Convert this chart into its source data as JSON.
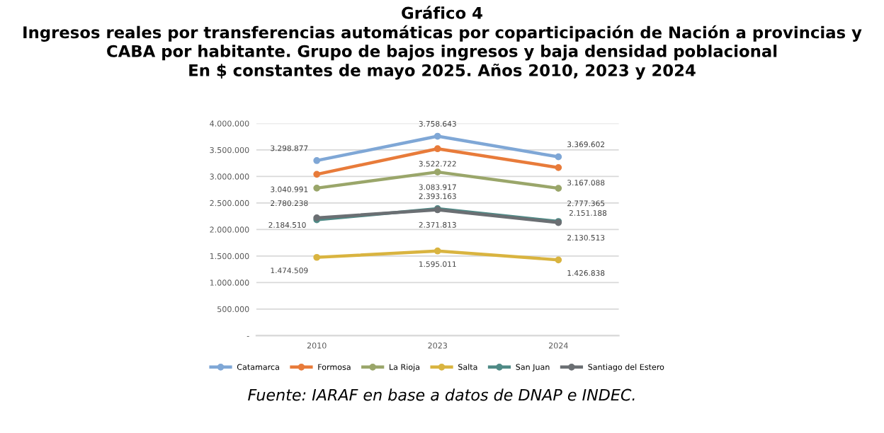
{
  "chart_data": {
    "type": "line",
    "title": "Gráfico 4\nIngresos reales por transferencias automáticas por coparticipación de Nación a provincias y\nCABA por habitante. Grupo de bajos ingresos y baja densidad poblacional\nEn $ constantes de mayo 2025. Años 2010, 2023 y 2024",
    "categories": [
      "2010",
      "2023",
      "2024"
    ],
    "series": [
      {
        "name": "Catamarca",
        "color": "#7fa7d6",
        "values": [
          3298877,
          3758643,
          3369602
        ],
        "value_labels": [
          "3.298.877",
          "3.758.643",
          "3.369.602"
        ]
      },
      {
        "name": "Formosa",
        "color": "#e87b3a",
        "values": [
          3040991,
          3522722,
          3167088
        ],
        "value_labels": [
          "3.040.991",
          "3.522.722",
          "3.167.088"
        ]
      },
      {
        "name": "La Rioja",
        "color": "#9aa66a",
        "values": [
          2780238,
          3083917,
          2777365
        ],
        "value_labels": [
          "2.780.238",
          "3.083.917",
          "2.777.365"
        ]
      },
      {
        "name": "Salta",
        "color": "#d9b440",
        "values": [
          1474509,
          1595011,
          1426838
        ],
        "value_labels": [
          "1.474.509",
          "1.595.011",
          "1.426.838"
        ]
      },
      {
        "name": "San Juan",
        "color": "#4f8a86",
        "values": [
          2184510,
          2393163,
          2151188
        ],
        "value_labels": [
          "2.184.510",
          "2.393.163",
          "2.151.188"
        ]
      },
      {
        "name": "Santiago del Estero",
        "color": "#6b6f73",
        "values": [
          2220000,
          2371813,
          2130513
        ],
        "value_labels": [
          null,
          "2.371.813",
          "2.130.513"
        ]
      }
    ],
    "ylim": [
      0,
      4000000
    ],
    "yticks": [
      {
        "value": 0,
        "label": "-"
      },
      {
        "value": 500000,
        "label": "500.000"
      },
      {
        "value": 1000000,
        "label": "1.000.000"
      },
      {
        "value": 1500000,
        "label": "1.500.000"
      },
      {
        "value": 2000000,
        "label": "2.000.000"
      },
      {
        "value": 2500000,
        "label": "2.500.000"
      },
      {
        "value": 3000000,
        "label": "3.000.000"
      },
      {
        "value": 3500000,
        "label": "3.500.000"
      },
      {
        "value": 4000000,
        "label": "4.000.000"
      }
    ],
    "grid": "y",
    "legend": "bottom",
    "marker": "circle",
    "line_style": "solid",
    "annotations": [
      "Fuente: IARAF en base a datos de DNAP e INDEC."
    ]
  }
}
